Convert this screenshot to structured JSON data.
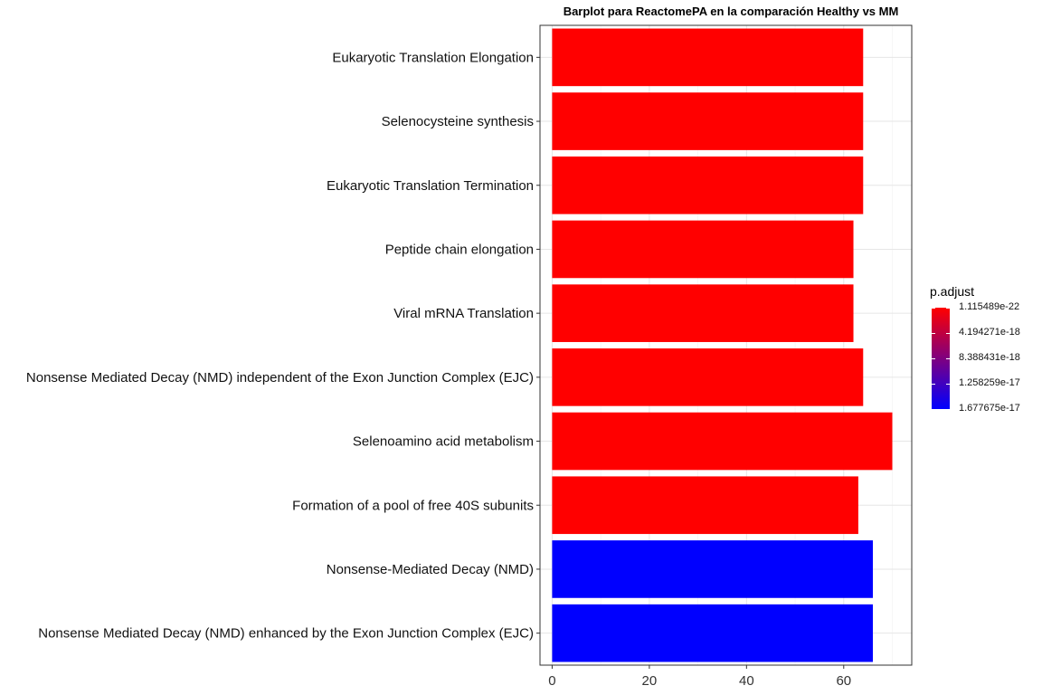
{
  "chart_data": {
    "type": "bar",
    "orientation": "horizontal",
    "title": "Barplot para ReactomePA en la comparación Healthy vs MM",
    "xlabel": "",
    "ylabel": "",
    "xlim": [
      -2.5,
      74
    ],
    "x_ticks": [
      "0",
      "20",
      "40",
      "60"
    ],
    "x_tick_values": [
      0,
      20,
      40,
      60
    ],
    "grid": true,
    "categories": [
      "Eukaryotic Translation Elongation",
      "Selenocysteine synthesis",
      "Eukaryotic Translation Termination",
      "Peptide chain elongation",
      "Viral mRNA Translation",
      "Nonsense Mediated Decay (NMD) independent of the Exon Junction Complex (EJC)",
      "Selenoamino acid metabolism",
      "Formation of a pool of free 40S subunits",
      "Nonsense-Mediated Decay (NMD)",
      "Nonsense Mediated Decay (NMD) enhanced by the Exon Junction Complex (EJC)"
    ],
    "values": [
      64,
      64,
      64,
      62,
      62,
      64,
      70,
      63,
      66,
      66
    ],
    "p_adjust": [
      1.115489e-22,
      1.115489e-22,
      1.115489e-22,
      1.115489e-22,
      1.115489e-22,
      1.115489e-22,
      1.115489e-22,
      1.115489e-22,
      1.677675e-17,
      1.677675e-17
    ],
    "legend": {
      "title": "p.adjust",
      "placement": "right",
      "labels": [
        "1.115489e-22",
        "4.194271e-18",
        "8.388431e-18",
        "1.258259e-17",
        "1.677675e-17"
      ],
      "label_values": [
        1.115489e-22,
        4.194271e-18,
        8.388431e-18,
        1.258259e-17,
        1.677675e-17
      ],
      "color_low_padjust": "#FF0000",
      "color_high_padjust": "#0000FF"
    }
  }
}
